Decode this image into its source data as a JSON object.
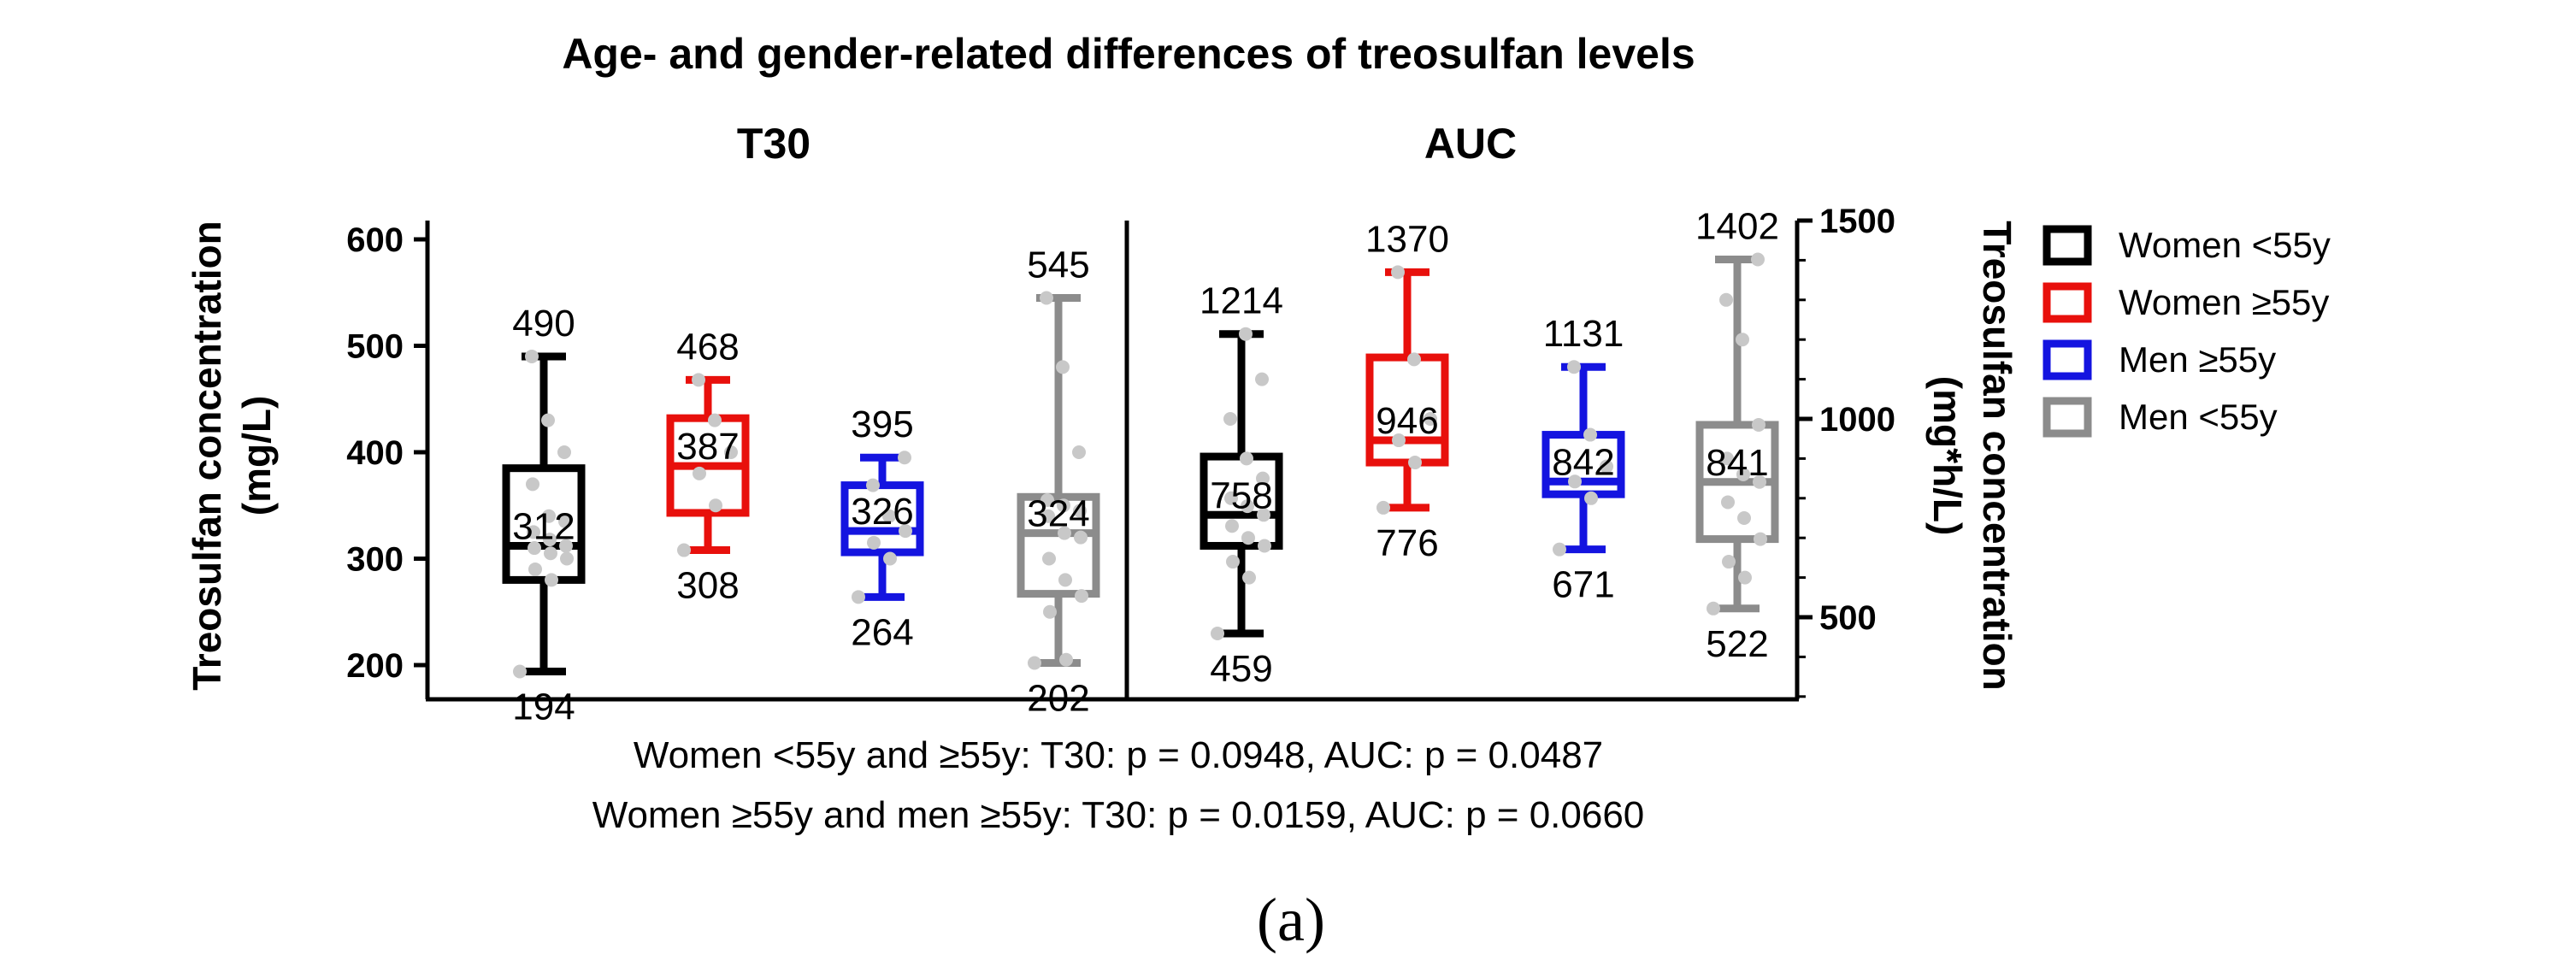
{
  "chart_data": {
    "type": "boxplot",
    "title": "Age- and gender-related differences of treosulfan levels",
    "panels": [
      {
        "name": "T30",
        "ylabel": "Treosulfan concentration (mg/L)",
        "ylabel_lines": [
          "Treosulfan concentration",
          "(mg/L)"
        ],
        "ylim": [
          150,
          600
        ],
        "yticks": [
          200,
          300,
          400,
          500,
          600
        ],
        "boxes": [
          {
            "group": "Women <55y",
            "min": 194,
            "q1": 280,
            "median": 312,
            "q3": 385,
            "max": 490,
            "labels": {
              "max": "490",
              "median": "312",
              "min": "194"
            },
            "points": [
              194,
              280,
              290,
              300,
              305,
              310,
              312,
              318,
              325,
              335,
              340,
              370,
              400,
              430,
              490
            ]
          },
          {
            "group": "Women ≥55y",
            "min": 308,
            "q1": 343,
            "median": 387,
            "q3": 432,
            "max": 468,
            "labels": {
              "max": "468",
              "median": "387",
              "min": "308"
            },
            "points": [
              308,
              350,
              380,
              400,
              430,
              468
            ]
          },
          {
            "group": "Men ≥55y",
            "min": 264,
            "q1": 306,
            "median": 326,
            "q3": 369,
            "max": 395,
            "labels": {
              "max": "395",
              "median": "326",
              "min": "264"
            },
            "points": [
              264,
              300,
              315,
              326,
              340,
              369,
              395
            ]
          },
          {
            "group": "Men <55y",
            "min": 202,
            "q1": 267,
            "median": 324,
            "q3": 358,
            "max": 545,
            "labels": {
              "max": "545",
              "median": "324",
              "min": "202"
            },
            "points": [
              202,
              205,
              250,
              265,
              280,
              300,
              320,
              324,
              340,
              345,
              350,
              355,
              400,
              480,
              545
            ]
          }
        ]
      },
      {
        "name": "AUC",
        "ylabel": "Treosulfan concentration (mg*h/L)",
        "ylabel_lines": [
          "Treosulfan concentration",
          "(mg*h/L)"
        ],
        "ylim": [
          300,
          1500
        ],
        "yticks": [
          500,
          1000,
          1500
        ],
        "boxes": [
          {
            "group": "Women <55y",
            "min": 459,
            "q1": 680,
            "median": 758,
            "q3": 905,
            "max": 1214,
            "labels": {
              "max": "1214",
              "median": "758",
              "min": "459"
            },
            "points": [
              459,
              600,
              640,
              680,
              700,
              730,
              758,
              780,
              800,
              850,
              900,
              1000,
              1100,
              1214
            ]
          },
          {
            "group": "Women ≥55y",
            "min": 776,
            "q1": 890,
            "median": 946,
            "q3": 1155,
            "max": 1370,
            "labels": {
              "max": "1370",
              "median": "946",
              "min": "776"
            },
            "points": [
              776,
              890,
              946,
              1000,
              1150,
              1370
            ]
          },
          {
            "group": "Men ≥55y",
            "min": 671,
            "q1": 810,
            "median": 842,
            "q3": 960,
            "max": 1131,
            "labels": {
              "max": "1131",
              "median": "842",
              "min": "671"
            },
            "points": [
              671,
              800,
              842,
              880,
              960,
              1131
            ]
          },
          {
            "group": "Men <55y",
            "min": 522,
            "q1": 697,
            "median": 841,
            "q3": 985,
            "max": 1402,
            "labels": {
              "max": "1402",
              "median": "841",
              "min": "522"
            },
            "points": [
              522,
              600,
              640,
              697,
              750,
              790,
              841,
              860,
              900,
              985,
              1200,
              1300,
              1402
            ]
          }
        ]
      }
    ],
    "legend": [
      {
        "label": "Women <55y",
        "color": "#000000"
      },
      {
        "label": "Women ≥55y",
        "color": "#e8100c"
      },
      {
        "label": "Men ≥55y",
        "color": "#1414e0"
      },
      {
        "label": "Men <55y",
        "color": "#8c8c8c"
      }
    ],
    "legend_position": "right",
    "annotations": [
      "Women <55y and ≥55y: T30: p = 0.0948, AUC: p = 0.0487",
      "Women ≥55y and men ≥55y: T30: p = 0.0159, AUC: p = 0.0660"
    ],
    "caption": "(a)",
    "point_color": "#c8c8c8"
  }
}
